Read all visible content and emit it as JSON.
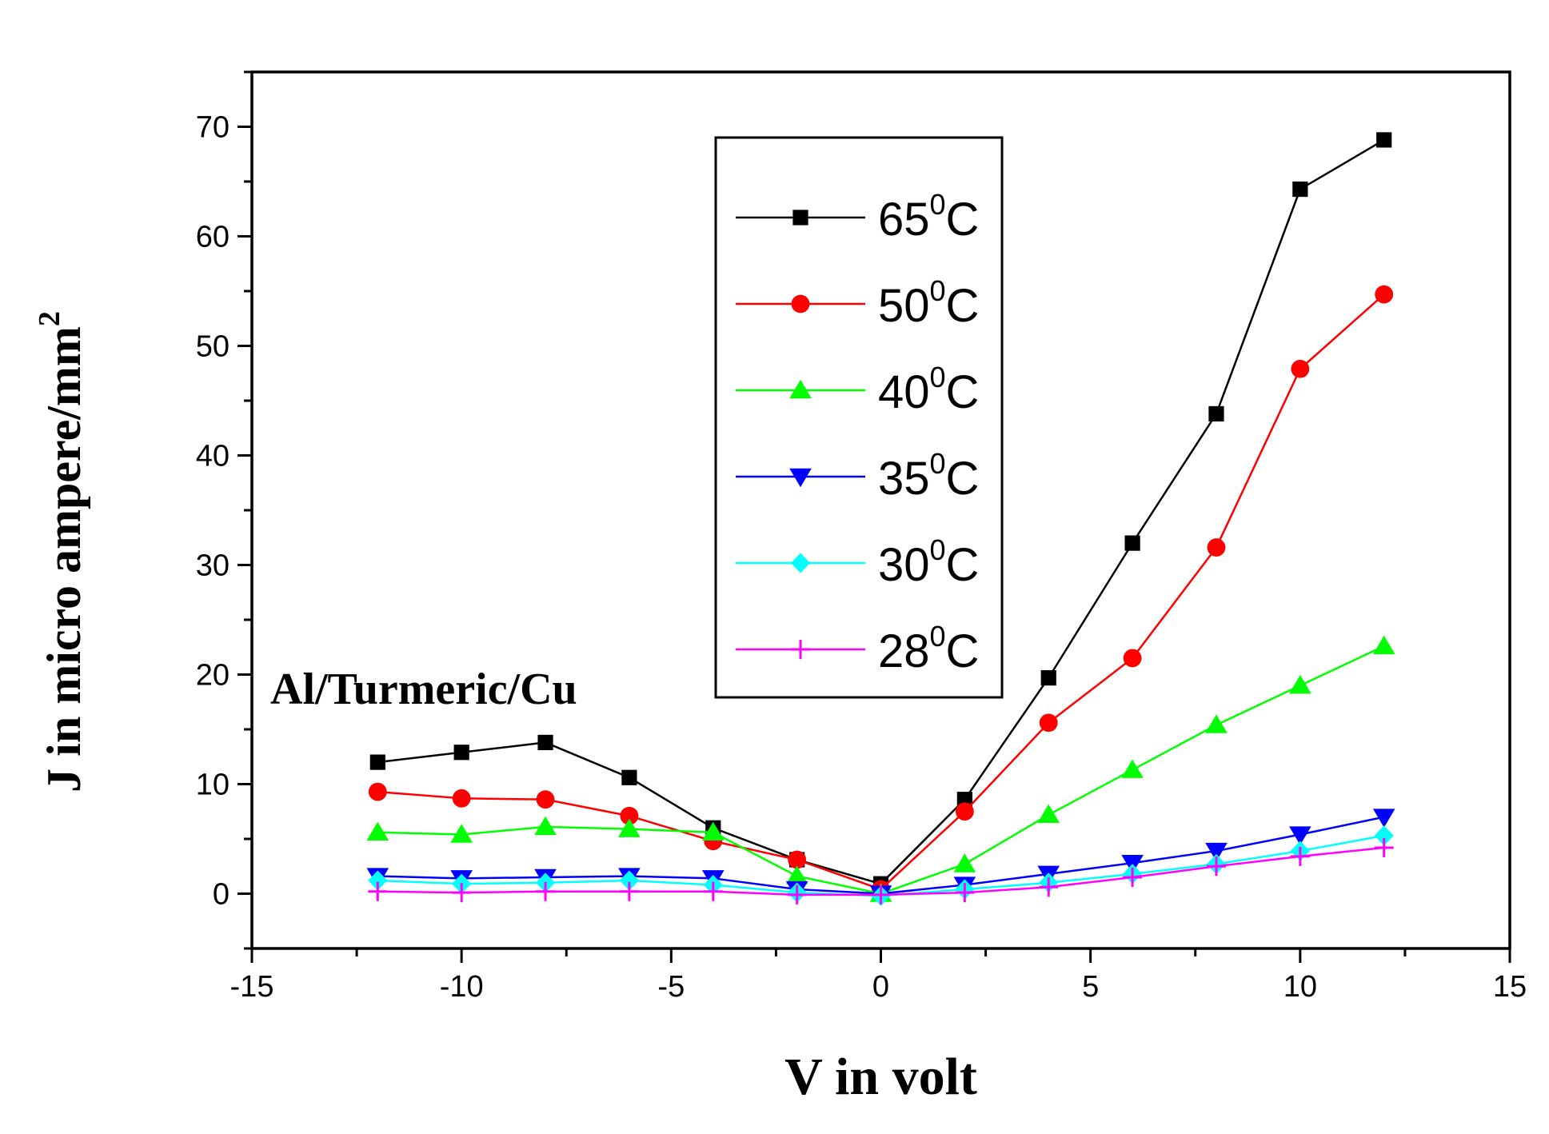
{
  "chart_data": {
    "type": "line",
    "title": "",
    "xlabel": "V in volt",
    "ylabel": "J in micro ampere/mm",
    "ylabel_superscript": "2",
    "annotation": "Al/Turmeric/Cu",
    "xlim": [
      -15,
      15
    ],
    "ylim": [
      -5,
      75
    ],
    "xticks": [
      -15,
      -10,
      -5,
      0,
      5,
      10,
      15
    ],
    "yticks": [
      0,
      10,
      20,
      30,
      40,
      50,
      60,
      70
    ],
    "legend_position": "top-center",
    "x": [
      -12,
      -10,
      -8,
      -6,
      -4,
      -2,
      0,
      2,
      4,
      6,
      8,
      10,
      12
    ],
    "series": [
      {
        "name": "65",
        "suffix": "C",
        "sup": "0",
        "color": "#000000",
        "marker": "square",
        "values": [
          12.0,
          12.9,
          13.8,
          10.6,
          6.0,
          3.1,
          0.9,
          8.6,
          19.7,
          32.0,
          43.8,
          64.3,
          68.8
        ]
      },
      {
        "name": "50",
        "suffix": "C",
        "sup": "0",
        "color": "#ff0000",
        "marker": "circle",
        "values": [
          9.3,
          8.7,
          8.6,
          7.1,
          4.8,
          3.1,
          0.4,
          7.5,
          15.6,
          21.5,
          31.6,
          47.9,
          54.7
        ]
      },
      {
        "name": "40",
        "suffix": "C",
        "sup": "0",
        "color": "#00ff00",
        "marker": "triangle-up",
        "values": [
          5.6,
          5.4,
          6.1,
          5.9,
          5.6,
          1.6,
          0.0,
          2.7,
          7.2,
          11.3,
          15.4,
          19.0,
          22.6
        ]
      },
      {
        "name": "35",
        "suffix": "C",
        "sup": "0",
        "color": "#0000ff",
        "marker": "triangle-down",
        "values": [
          1.6,
          1.4,
          1.5,
          1.6,
          1.4,
          0.4,
          0.0,
          0.8,
          1.8,
          2.8,
          3.9,
          5.4,
          7.0
        ]
      },
      {
        "name": "30",
        "suffix": "C",
        "sup": "0",
        "color": "#00ffff",
        "marker": "diamond",
        "values": [
          1.2,
          0.9,
          1.0,
          1.2,
          0.8,
          0.1,
          -0.2,
          0.4,
          1.0,
          1.8,
          2.7,
          3.9,
          5.3
        ]
      },
      {
        "name": "28",
        "suffix": "C",
        "sup": "0",
        "color": "#ff00ff",
        "marker": "plus",
        "values": [
          0.2,
          0.1,
          0.2,
          0.2,
          0.2,
          -0.1,
          -0.1,
          0.1,
          0.6,
          1.5,
          2.5,
          3.4,
          4.2
        ]
      }
    ]
  }
}
